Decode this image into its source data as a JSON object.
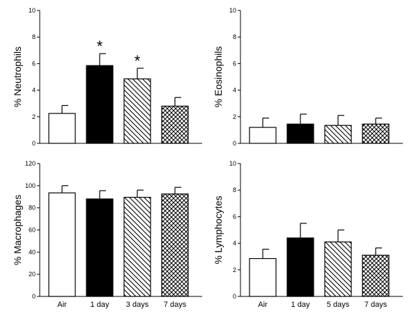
{
  "chart_data": [
    {
      "type": "bar",
      "ylabel": "% Neutrophils",
      "ylim": [
        0,
        10
      ],
      "yticks": [
        "0",
        "2",
        "4",
        "6",
        "8",
        "10"
      ],
      "categories": [
        "Air",
        "1 day",
        "3 days",
        "7 days"
      ],
      "show_category_labels": false,
      "values": [
        2.25,
        5.85,
        4.85,
        2.8
      ],
      "errors": [
        0.6,
        0.9,
        0.8,
        0.65
      ],
      "significant": [
        false,
        true,
        true,
        false
      ],
      "significance_marker": "*",
      "fills": [
        "white",
        "black",
        "diagonal",
        "crosshatch"
      ]
    },
    {
      "type": "bar",
      "ylabel": "% Eosinophils",
      "ylim": [
        0,
        10
      ],
      "yticks": [
        "0",
        "2",
        "4",
        "6",
        "8",
        "10"
      ],
      "categories": [
        "Air",
        "1 day",
        "5 days",
        "7 days"
      ],
      "show_category_labels": false,
      "values": [
        1.2,
        1.45,
        1.35,
        1.45
      ],
      "errors": [
        0.7,
        0.75,
        0.75,
        0.45
      ],
      "significant": [
        false,
        false,
        false,
        false
      ],
      "significance_marker": "*",
      "fills": [
        "white",
        "black",
        "diagonal",
        "crosshatch"
      ]
    },
    {
      "type": "bar",
      "ylabel": "% Macrophages",
      "ylim": [
        0,
        120
      ],
      "yticks": [
        "0",
        "20",
        "40",
        "60",
        "80",
        "100",
        "120"
      ],
      "categories": [
        "Air",
        "1 day",
        "3 days",
        "7 days"
      ],
      "show_category_labels": true,
      "values": [
        93.5,
        88.0,
        89.5,
        92.5
      ],
      "errors": [
        6.5,
        7.5,
        6.5,
        6.0
      ],
      "significant": [
        false,
        false,
        false,
        false
      ],
      "significance_marker": "*",
      "fills": [
        "white",
        "black",
        "diagonal",
        "crosshatch"
      ]
    },
    {
      "type": "bar",
      "ylabel": "% Lymphocytes",
      "ylim": [
        0,
        10
      ],
      "yticks": [
        "0",
        "2",
        "4",
        "6",
        "8",
        "10"
      ],
      "categories": [
        "Air",
        "1 day",
        "5 days",
        "7 days"
      ],
      "show_category_labels": true,
      "values": [
        2.85,
        4.4,
        4.1,
        3.1
      ],
      "errors": [
        0.7,
        1.1,
        0.9,
        0.55
      ],
      "significant": [
        false,
        false,
        false,
        false
      ],
      "significance_marker": "*",
      "fills": [
        "white",
        "black",
        "diagonal",
        "crosshatch"
      ]
    }
  ]
}
